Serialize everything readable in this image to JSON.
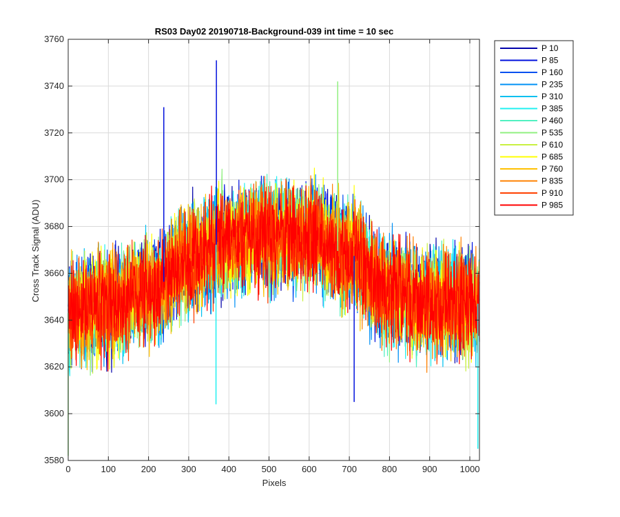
{
  "chart_data": {
    "type": "line",
    "title": "RS03 Day02 20190718-Background-039 int time = 10 sec",
    "xlabel": "Pixels",
    "ylabel": "Cross Track Signal (ADU)",
    "xlim": [
      0,
      1024
    ],
    "ylim": [
      3580,
      3760
    ],
    "xticks": [
      0,
      100,
      200,
      300,
      400,
      500,
      600,
      700,
      800,
      900,
      1000
    ],
    "yticks": [
      3580,
      3600,
      3620,
      3640,
      3660,
      3680,
      3700,
      3720,
      3740,
      3760
    ],
    "grid": true,
    "legend_location": "outside-top-right",
    "trend": {
      "description_points_x": [
        0,
        100,
        200,
        300,
        400,
        500,
        600,
        700,
        800,
        900,
        1024
      ],
      "mean_y": [
        3643,
        3646,
        3652,
        3666,
        3674,
        3676,
        3676,
        3668,
        3652,
        3648,
        3647
      ]
    },
    "noise_peak_to_peak": 70,
    "series": [
      {
        "name": "P 10",
        "color": "#0000aa"
      },
      {
        "name": "P 85",
        "color": "#0010dd"
      },
      {
        "name": "P 160",
        "color": "#0050f0"
      },
      {
        "name": "P 235",
        "color": "#0090f5"
      },
      {
        "name": "P 310",
        "color": "#00c0f0"
      },
      {
        "name": "P 385",
        "color": "#20f0f0"
      },
      {
        "name": "P 460",
        "color": "#50f0c0"
      },
      {
        "name": "P 535",
        "color": "#90f080"
      },
      {
        "name": "P 610",
        "color": "#c8f040"
      },
      {
        "name": "P 685",
        "color": "#ffff00"
      },
      {
        "name": "P 760",
        "color": "#ffc000"
      },
      {
        "name": "P 835",
        "color": "#ff8000"
      },
      {
        "name": "P 910",
        "color": "#ff4000"
      },
      {
        "name": "P 985",
        "color": "#ff0000"
      }
    ],
    "notable_peaks": [
      {
        "x": 238,
        "y": 3731
      },
      {
        "x": 369,
        "y": 3751
      },
      {
        "x": 671,
        "y": 3742
      },
      {
        "x": 368,
        "y": 3604
      },
      {
        "x": 712,
        "y": 3605
      },
      {
        "x": 1020,
        "y": 3585
      },
      {
        "x": 0,
        "y": 3582
      }
    ]
  }
}
